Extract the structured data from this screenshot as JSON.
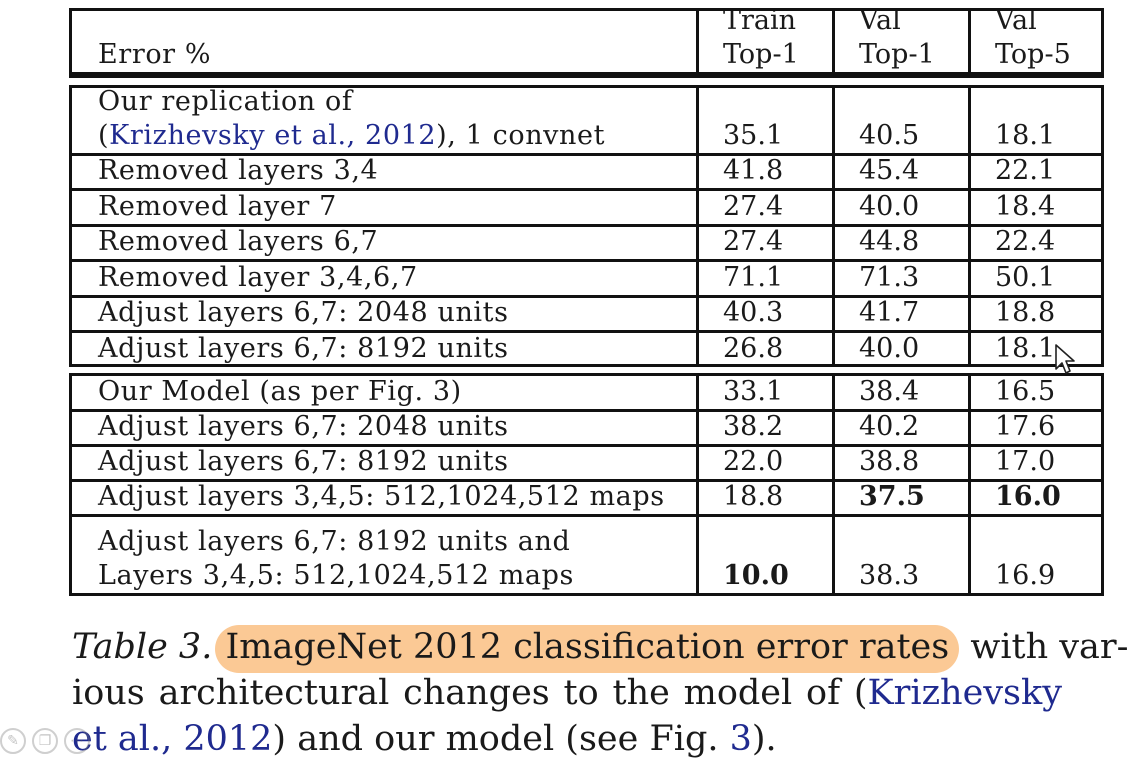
{
  "table": {
    "header": {
      "col0": "Error %",
      "col1": [
        "Train",
        "Top-1"
      ],
      "col2": [
        "Val",
        "Top-1"
      ],
      "col3": [
        "Val",
        "Top-5"
      ]
    },
    "block1": [
      {
        "label_lines": [
          "Our replication of",
          "(Krizhevsky et al., 2012), 1 convnet"
        ],
        "train_top1": "35.1",
        "val_top1": "40.5",
        "val_top5": "18.1"
      },
      {
        "label_lines": [
          "Removed layers 3,4"
        ],
        "train_top1": "41.8",
        "val_top1": "45.4",
        "val_top5": "22.1"
      },
      {
        "label_lines": [
          "Removed layer 7"
        ],
        "train_top1": "27.4",
        "val_top1": "40.0",
        "val_top5": "18.4"
      },
      {
        "label_lines": [
          "Removed layers 6,7"
        ],
        "train_top1": "27.4",
        "val_top1": "44.8",
        "val_top5": "22.4"
      },
      {
        "label_lines": [
          "Removed layer 3,4,6,7"
        ],
        "train_top1": "71.1",
        "val_top1": "71.3",
        "val_top5": "50.1"
      },
      {
        "label_lines": [
          "Adjust layers 6,7: 2048 units"
        ],
        "train_top1": "40.3",
        "val_top1": "41.7",
        "val_top5": "18.8"
      },
      {
        "label_lines": [
          "Adjust layers 6,7: 8192 units"
        ],
        "train_top1": "26.8",
        "val_top1": "40.0",
        "val_top5": "18.1"
      }
    ],
    "block2": [
      {
        "label_lines": [
          "Our Model (as per Fig. 3)"
        ],
        "train_top1": "33.1",
        "val_top1": "38.4",
        "val_top5": "16.5"
      },
      {
        "label_lines": [
          "Adjust layers 6,7: 2048 units"
        ],
        "train_top1": "38.2",
        "val_top1": "40.2",
        "val_top5": "17.6"
      },
      {
        "label_lines": [
          "Adjust layers 6,7: 8192 units"
        ],
        "train_top1": "22.0",
        "val_top1": "38.8",
        "val_top5": "17.0"
      },
      {
        "label_lines": [
          "Adjust layers 3,4,5: 512,1024,512 maps"
        ],
        "train_top1": "18.8",
        "val_top1": "37.5",
        "val_top5": "16.0",
        "bold": [
          "val_top1",
          "val_top5"
        ]
      },
      {
        "label_lines": [
          "Adjust layers 6,7: 8192 units and",
          "Layers 3,4,5: 512,1024,512 maps"
        ],
        "train_top1": "10.0",
        "val_top1": "38.3",
        "val_top5": "16.9",
        "bold": [
          "train_top1"
        ]
      }
    ]
  },
  "caption": {
    "table_label": "Table 3.",
    "highlighted": "ImageNet 2012 classification error rates",
    "line1_rest": "with var-",
    "line2": "ious architectural changes to the model of (",
    "line2_link": "Krizhevsky",
    "line3_link": "et al., 2012",
    "line3_middle": ") and our model (see Fig. ",
    "line3_fig": "3",
    "line3_end": ")."
  },
  "colors": {
    "highlight": "#fbc995",
    "link": "#1f2a8f",
    "rule": "#111111"
  }
}
